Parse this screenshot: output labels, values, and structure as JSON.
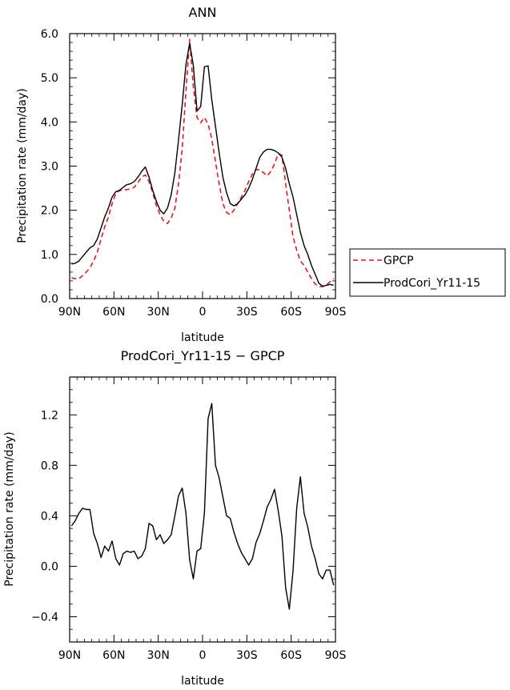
{
  "chart_data": [
    {
      "type": "line",
      "title": "ANN",
      "xlabel": "latitude",
      "ylabel": "Precipitation rate (mm/day)",
      "xlim": [
        90,
        -90
      ],
      "ylim": [
        0.0,
        6.0
      ],
      "x_tick_values": [
        90,
        60,
        30,
        0,
        -30,
        -60,
        -90
      ],
      "x_tick_labels": [
        "90N",
        "60N",
        "30N",
        "0",
        "30S",
        "60S",
        "90S"
      ],
      "y_tick_values": [
        0.0,
        1.0,
        2.0,
        3.0,
        4.0,
        5.0,
        6.0
      ],
      "y_tick_labels": [
        "0.0",
        "1.0",
        "2.0",
        "3.0",
        "4.0",
        "5.0",
        "6.0"
      ],
      "x": [
        88.75,
        86.25,
        83.75,
        81.25,
        78.75,
        76.25,
        73.75,
        71.25,
        68.75,
        66.25,
        63.75,
        61.25,
        58.75,
        56.25,
        53.75,
        51.25,
        48.75,
        46.25,
        43.75,
        41.25,
        38.75,
        36.25,
        33.75,
        31.25,
        28.75,
        26.25,
        23.75,
        21.25,
        18.75,
        16.25,
        13.75,
        11.25,
        8.75,
        6.25,
        3.75,
        1.25,
        -1.25,
        -3.75,
        -6.25,
        -8.75,
        -11.25,
        -13.75,
        -16.25,
        -18.75,
        -21.25,
        -23.75,
        -26.25,
        -28.75,
        -31.25,
        -33.75,
        -36.25,
        -38.75,
        -41.25,
        -43.75,
        -46.25,
        -48.75,
        -51.25,
        -53.75,
        -56.25,
        -58.75,
        -61.25,
        -63.75,
        -66.25,
        -68.75,
        -71.25,
        -73.75,
        -76.25,
        -78.75,
        -81.25,
        -83.75,
        -86.25,
        -88.75
      ],
      "series": [
        {
          "name": "GPCP",
          "color": "#e8161b",
          "dash": "dashed",
          "values": [
            0.47,
            0.45,
            0.45,
            0.52,
            0.6,
            0.7,
            0.85,
            1.05,
            1.35,
            1.62,
            1.85,
            2.15,
            2.38,
            2.45,
            2.45,
            2.47,
            2.48,
            2.52,
            2.63,
            2.75,
            2.8,
            2.65,
            2.4,
            2.1,
            1.9,
            1.75,
            1.7,
            1.82,
            2.05,
            2.6,
            3.4,
            4.7,
            5.87,
            4.8,
            4.1,
            3.98,
            4.1,
            3.95,
            3.62,
            3.1,
            2.6,
            2.15,
            1.95,
            1.9,
            2.0,
            2.15,
            2.3,
            2.45,
            2.65,
            2.82,
            2.92,
            2.92,
            2.85,
            2.78,
            2.88,
            3.05,
            3.28,
            3.25,
            2.6,
            2.0,
            1.4,
            1.1,
            0.85,
            0.75,
            0.6,
            0.45,
            0.33,
            0.28,
            0.27,
            0.3,
            0.38,
            0.45
          ]
        },
        {
          "name": "ProdCori_Yr11-15",
          "color": "#000000",
          "dash": "solid",
          "values": [
            0.78,
            0.8,
            0.85,
            0.95,
            1.05,
            1.15,
            1.2,
            1.35,
            1.6,
            1.85,
            2.05,
            2.3,
            2.42,
            2.45,
            2.52,
            2.58,
            2.6,
            2.65,
            2.75,
            2.88,
            2.98,
            2.75,
            2.45,
            2.2,
            2.0,
            1.92,
            2.05,
            2.35,
            2.85,
            3.6,
            4.4,
            5.3,
            5.78,
            5.28,
            4.25,
            4.35,
            5.25,
            5.27,
            4.5,
            3.9,
            3.3,
            2.75,
            2.4,
            2.15,
            2.1,
            2.15,
            2.25,
            2.35,
            2.5,
            2.7,
            2.95,
            3.2,
            3.32,
            3.38,
            3.38,
            3.35,
            3.3,
            3.2,
            2.95,
            2.6,
            2.3,
            1.9,
            1.5,
            1.2,
            1.0,
            0.75,
            0.55,
            0.35,
            0.28,
            0.3,
            0.32,
            0.3
          ]
        }
      ],
      "legend": {
        "placement": "right",
        "entries": [
          "GPCP",
          "ProdCori_Yr11-15"
        ]
      }
    },
    {
      "type": "line",
      "title": "ProdCori_Yr11-15 − GPCP",
      "xlabel": "latitude",
      "ylabel": "Precipitation rate (mm/day)",
      "xlim": [
        90,
        -90
      ],
      "ylim": [
        -0.6,
        1.5
      ],
      "x_tick_values": [
        90,
        60,
        30,
        0,
        -30,
        -60,
        -90
      ],
      "x_tick_labels": [
        "90N",
        "60N",
        "30N",
        "0",
        "30S",
        "60S",
        "90S"
      ],
      "y_tick_values": [
        -0.4,
        0.0,
        0.4,
        0.8,
        1.2
      ],
      "y_tick_labels": [
        "−0.4",
        "0.0",
        "0.4",
        "0.8",
        "1.2"
      ],
      "minor_y_step": 0.1,
      "x": [
        88.75,
        86.25,
        83.75,
        81.25,
        78.75,
        76.25,
        73.75,
        71.25,
        68.75,
        66.25,
        63.75,
        61.25,
        58.75,
        56.25,
        53.75,
        51.25,
        48.75,
        46.25,
        43.75,
        41.25,
        38.75,
        36.25,
        33.75,
        31.25,
        28.75,
        26.25,
        23.75,
        21.25,
        18.75,
        16.25,
        13.75,
        11.25,
        8.75,
        6.25,
        3.75,
        1.25,
        -1.25,
        -3.75,
        -6.25,
        -8.75,
        -11.25,
        -13.75,
        -16.25,
        -18.75,
        -21.25,
        -23.75,
        -26.25,
        -28.75,
        -31.25,
        -33.75,
        -36.25,
        -38.75,
        -41.25,
        -43.75,
        -46.25,
        -48.75,
        -51.25,
        -53.75,
        -56.25,
        -58.75,
        -61.25,
        -63.75,
        -66.25,
        -68.75,
        -71.25,
        -73.75,
        -76.25,
        -78.75,
        -81.25,
        -83.75,
        -86.25,
        -88.75
      ],
      "series": [
        {
          "name": "ProdCori_Yr11-15 − GPCP",
          "color": "#000000",
          "dash": "solid",
          "values": [
            0.32,
            0.36,
            0.42,
            0.46,
            0.45,
            0.45,
            0.26,
            0.18,
            0.07,
            0.16,
            0.12,
            0.2,
            0.06,
            0.01,
            0.1,
            0.12,
            0.11,
            0.12,
            0.06,
            0.08,
            0.14,
            0.34,
            0.32,
            0.21,
            0.25,
            0.18,
            0.21,
            0.25,
            0.4,
            0.56,
            0.62,
            0.42,
            0.05,
            -0.1,
            0.12,
            0.14,
            0.42,
            1.17,
            1.29,
            0.8,
            0.7,
            0.55,
            0.4,
            0.38,
            0.27,
            0.18,
            0.11,
            0.06,
            0.01,
            0.06,
            0.19,
            0.26,
            0.36,
            0.47,
            0.53,
            0.61,
            0.44,
            0.24,
            -0.17,
            -0.34,
            -0.04,
            0.46,
            0.71,
            0.42,
            0.31,
            0.16,
            0.06,
            -0.06,
            -0.1,
            -0.03,
            -0.03,
            -0.15
          ]
        }
      ]
    }
  ]
}
